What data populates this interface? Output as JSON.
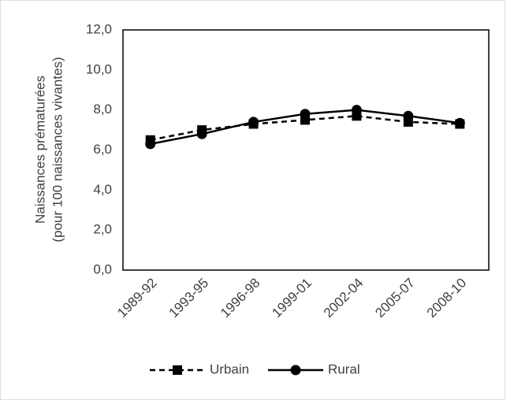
{
  "chart_data": {
    "type": "line",
    "ylabel": [
      "Naissances prématurées",
      "(pour 100 naissances vivantes)"
    ],
    "categories": [
      "1989-92",
      "1993-95",
      "1996-98",
      "1999-01",
      "2002-04",
      "2005-07",
      "2008-10"
    ],
    "series": [
      {
        "name": "Urbain",
        "color": "#000000",
        "line_style": "dashed",
        "marker": "square",
        "values": [
          6.5,
          7.0,
          7.3,
          7.5,
          7.7,
          7.4,
          7.3
        ]
      },
      {
        "name": "Rural",
        "color": "#000000",
        "line_style": "solid",
        "marker": "circle",
        "values": [
          6.3,
          6.8,
          7.4,
          7.8,
          8.0,
          7.7,
          7.35
        ]
      }
    ],
    "ylim": [
      0,
      12
    ],
    "yticks": [
      {
        "value": 0,
        "label": "0,0"
      },
      {
        "value": 2,
        "label": "2,0"
      },
      {
        "value": 4,
        "label": "4,0"
      },
      {
        "value": 6,
        "label": "6,0"
      },
      {
        "value": 8,
        "label": "8,0"
      },
      {
        "value": 10,
        "label": "10,0"
      },
      {
        "value": 12,
        "label": "12,0"
      }
    ],
    "grid": false,
    "legend": "bottom"
  }
}
